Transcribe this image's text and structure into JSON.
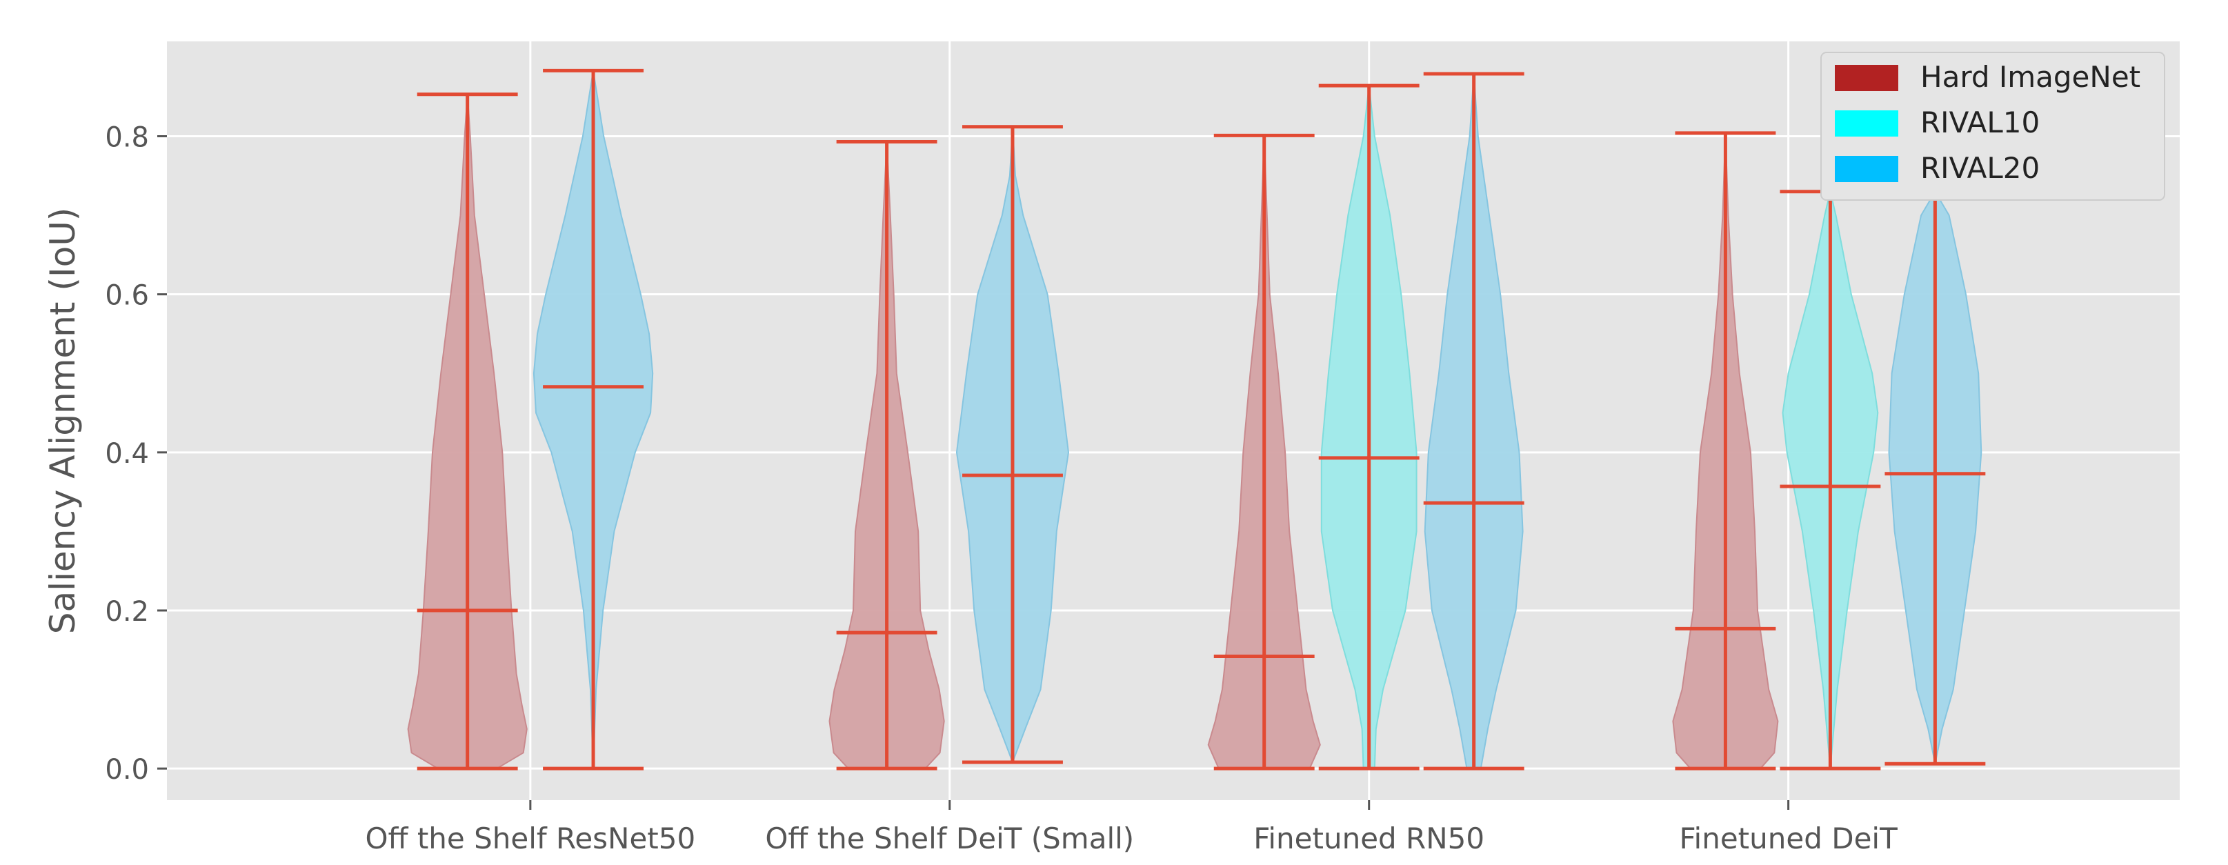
{
  "chart_data": {
    "type": "violin",
    "title": "",
    "xlabel": "",
    "ylabel": "Saliency Alignment (IoU)",
    "ylim": [
      -0.04,
      0.92
    ],
    "yticks": [
      0.0,
      0.2,
      0.4,
      0.6,
      0.8
    ],
    "ytick_labels": [
      "0.0",
      "0.2",
      "0.4",
      "0.6",
      "0.8"
    ],
    "grid": true,
    "legend_position": "top-right",
    "categories": [
      "Off the Shelf ResNet50",
      "Off the Shelf DeiT (Small)",
      "Finetuned RN50",
      "Finetuned DeiT"
    ],
    "stat_color": "#e24a33",
    "background": "#e5e5e5",
    "series": [
      {
        "name": "Hard ImageNet",
        "color": "#b22222",
        "fill": "#d4a2a4",
        "stroke": "#c98a8e"
      },
      {
        "name": "RIVAL10",
        "color": "#00ffff",
        "fill": "#9eeaea",
        "stroke": "#7fdddd"
      },
      {
        "name": "RIVAL20",
        "color": "#00bfff",
        "fill": "#a2d6ea",
        "stroke": "#86c5e0"
      }
    ],
    "violins": [
      {
        "category": "Off the Shelf ResNet50",
        "series": "Hard ImageNet",
        "x": 0.55,
        "min": 0.0,
        "median": 0.2,
        "max": 0.853,
        "profile": [
          [
            0.0,
            0.042
          ],
          [
            0.02,
            0.08
          ],
          [
            0.05,
            0.085
          ],
          [
            0.08,
            0.078
          ],
          [
            0.12,
            0.07
          ],
          [
            0.2,
            0.063
          ],
          [
            0.3,
            0.056
          ],
          [
            0.4,
            0.05
          ],
          [
            0.5,
            0.038
          ],
          [
            0.6,
            0.024
          ],
          [
            0.7,
            0.01
          ],
          [
            0.8,
            0.004
          ],
          [
            0.853,
            0.0
          ]
        ]
      },
      {
        "category": "Off the Shelf ResNet50",
        "series": "RIVAL20",
        "x": 1.45,
        "min": 0.0,
        "median": 0.483,
        "max": 0.883,
        "profile": [
          [
            0.0,
            0.0
          ],
          [
            0.1,
            0.004
          ],
          [
            0.2,
            0.014
          ],
          [
            0.3,
            0.03
          ],
          [
            0.4,
            0.06
          ],
          [
            0.45,
            0.082
          ],
          [
            0.5,
            0.085
          ],
          [
            0.55,
            0.08
          ],
          [
            0.6,
            0.068
          ],
          [
            0.7,
            0.04
          ],
          [
            0.8,
            0.015
          ],
          [
            0.883,
            0.0
          ]
        ]
      },
      {
        "category": "Off the Shelf DeiT (Small)",
        "series": "Hard ImageNet",
        "x": 3.55,
        "min": 0.0,
        "median": 0.172,
        "max": 0.793,
        "profile": [
          [
            0.0,
            0.055
          ],
          [
            0.02,
            0.076
          ],
          [
            0.06,
            0.082
          ],
          [
            0.1,
            0.075
          ],
          [
            0.15,
            0.06
          ],
          [
            0.2,
            0.048
          ],
          [
            0.3,
            0.045
          ],
          [
            0.4,
            0.03
          ],
          [
            0.5,
            0.014
          ],
          [
            0.6,
            0.01
          ],
          [
            0.7,
            0.005
          ],
          [
            0.793,
            0.0
          ]
        ]
      },
      {
        "category": "Off the Shelf DeiT (Small)",
        "series": "RIVAL20",
        "x": 4.45,
        "min": 0.008,
        "median": 0.371,
        "max": 0.812,
        "profile": [
          [
            0.008,
            0.0
          ],
          [
            0.05,
            0.018
          ],
          [
            0.1,
            0.04
          ],
          [
            0.2,
            0.055
          ],
          [
            0.3,
            0.063
          ],
          [
            0.4,
            0.08
          ],
          [
            0.5,
            0.066
          ],
          [
            0.6,
            0.05
          ],
          [
            0.7,
            0.015
          ],
          [
            0.75,
            0.004
          ],
          [
            0.812,
            0.0
          ]
        ]
      },
      {
        "category": "Finetuned RN50",
        "series": "Hard ImageNet",
        "x": 6.25,
        "min": 0.0,
        "median": 0.142,
        "max": 0.801,
        "profile": [
          [
            0.0,
            0.065
          ],
          [
            0.03,
            0.08
          ],
          [
            0.06,
            0.07
          ],
          [
            0.1,
            0.06
          ],
          [
            0.2,
            0.048
          ],
          [
            0.3,
            0.036
          ],
          [
            0.4,
            0.03
          ],
          [
            0.5,
            0.02
          ],
          [
            0.6,
            0.008
          ],
          [
            0.7,
            0.004
          ],
          [
            0.801,
            0.0
          ]
        ]
      },
      {
        "category": "Finetuned RN50",
        "series": "RIVAL10",
        "x": 7.0,
        "min": 0.0,
        "median": 0.393,
        "max": 0.864,
        "profile": [
          [
            0.0,
            0.008
          ],
          [
            0.05,
            0.01
          ],
          [
            0.1,
            0.02
          ],
          [
            0.2,
            0.052
          ],
          [
            0.3,
            0.068
          ],
          [
            0.4,
            0.068
          ],
          [
            0.5,
            0.058
          ],
          [
            0.6,
            0.046
          ],
          [
            0.7,
            0.03
          ],
          [
            0.8,
            0.008
          ],
          [
            0.864,
            0.0
          ]
        ]
      },
      {
        "category": "Finetuned RN50",
        "series": "RIVAL20",
        "x": 7.75,
        "min": 0.0,
        "median": 0.336,
        "max": 0.879,
        "profile": [
          [
            0.0,
            0.01
          ],
          [
            0.05,
            0.02
          ],
          [
            0.1,
            0.032
          ],
          [
            0.2,
            0.06
          ],
          [
            0.3,
            0.07
          ],
          [
            0.4,
            0.065
          ],
          [
            0.5,
            0.05
          ],
          [
            0.6,
            0.038
          ],
          [
            0.7,
            0.022
          ],
          [
            0.8,
            0.006
          ],
          [
            0.879,
            0.0
          ]
        ]
      },
      {
        "category": "Finetuned DeiT",
        "series": "Hard ImageNet",
        "x": 9.55,
        "min": 0.0,
        "median": 0.177,
        "max": 0.804,
        "profile": [
          [
            0.0,
            0.05
          ],
          [
            0.02,
            0.07
          ],
          [
            0.06,
            0.075
          ],
          [
            0.1,
            0.062
          ],
          [
            0.2,
            0.046
          ],
          [
            0.3,
            0.042
          ],
          [
            0.4,
            0.036
          ],
          [
            0.5,
            0.02
          ],
          [
            0.6,
            0.01
          ],
          [
            0.7,
            0.004
          ],
          [
            0.804,
            0.0
          ]
        ]
      },
      {
        "category": "Finetuned DeiT",
        "series": "RIVAL10",
        "x": 10.3,
        "min": 0.0,
        "median": 0.357,
        "max": 0.73,
        "profile": [
          [
            0.0,
            0.0
          ],
          [
            0.1,
            0.01
          ],
          [
            0.2,
            0.024
          ],
          [
            0.3,
            0.04
          ],
          [
            0.4,
            0.062
          ],
          [
            0.45,
            0.068
          ],
          [
            0.5,
            0.06
          ],
          [
            0.6,
            0.03
          ],
          [
            0.7,
            0.008
          ],
          [
            0.73,
            0.0
          ]
        ]
      },
      {
        "category": "Finetuned DeiT",
        "series": "RIVAL20",
        "x": 11.05,
        "min": 0.006,
        "median": 0.373,
        "max": 0.73,
        "profile": [
          [
            0.006,
            0.0
          ],
          [
            0.05,
            0.01
          ],
          [
            0.1,
            0.026
          ],
          [
            0.2,
            0.042
          ],
          [
            0.3,
            0.058
          ],
          [
            0.4,
            0.066
          ],
          [
            0.5,
            0.062
          ],
          [
            0.6,
            0.044
          ],
          [
            0.7,
            0.02
          ],
          [
            0.73,
            0.0
          ]
        ]
      }
    ],
    "category_positions": [
      1.0,
      4.0,
      7.0,
      10.0
    ]
  }
}
